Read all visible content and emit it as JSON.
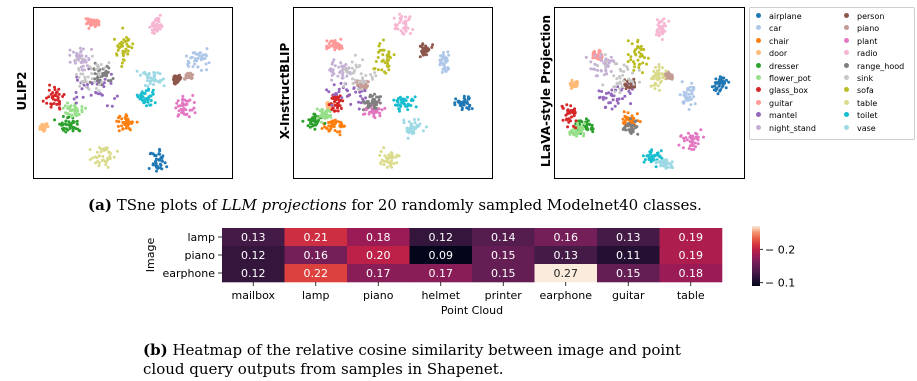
{
  "tsne": {
    "panels": [
      {
        "label": "ULIP2"
      },
      {
        "label": "X-InstructBLIP"
      },
      {
        "label": "LLaVA-style Projection"
      }
    ],
    "legend": [
      {
        "name": "airplane",
        "color": "#1f77b4"
      },
      {
        "name": "car",
        "color": "#aec7e8"
      },
      {
        "name": "chair",
        "color": "#ff7f0e"
      },
      {
        "name": "door",
        "color": "#ffbb78"
      },
      {
        "name": "dresser",
        "color": "#2ca02c"
      },
      {
        "name": "flower_pot",
        "color": "#98df8a"
      },
      {
        "name": "glass_box",
        "color": "#d62728"
      },
      {
        "name": "guitar",
        "color": "#ff9896"
      },
      {
        "name": "mantel",
        "color": "#9467bd"
      },
      {
        "name": "night_stand",
        "color": "#c5b0d5"
      },
      {
        "name": "person",
        "color": "#8c564b"
      },
      {
        "name": "piano",
        "color": "#c49c94"
      },
      {
        "name": "plant",
        "color": "#e377c2"
      },
      {
        "name": "radio",
        "color": "#f7b6d2"
      },
      {
        "name": "range_hood",
        "color": "#7f7f7f"
      },
      {
        "name": "sink",
        "color": "#c7c7c7"
      },
      {
        "name": "sofa",
        "color": "#bcbd22"
      },
      {
        "name": "table",
        "color": "#dbdb8d"
      },
      {
        "name": "toilet",
        "color": "#17becf"
      },
      {
        "name": "vase",
        "color": "#9edae5"
      }
    ]
  },
  "caption_a": {
    "tag": "(a)",
    "pre": " TSne plots of ",
    "em": "LLM projections",
    "post": " for 20 randomly sampled Modelnet40 classes."
  },
  "chart_data": {
    "type": "heatmap",
    "xlabel": "Point Cloud",
    "ylabel": "Image",
    "x_categories": [
      "mailbox",
      "lamp",
      "piano",
      "helmet",
      "printer",
      "earphone",
      "guitar",
      "table"
    ],
    "y_categories": [
      "lamp",
      "piano",
      "earphone"
    ],
    "values": [
      [
        0.13,
        0.21,
        0.18,
        0.12,
        0.14,
        0.16,
        0.13,
        0.19
      ],
      [
        0.12,
        0.16,
        0.2,
        0.09,
        0.15,
        0.13,
        0.11,
        0.19
      ],
      [
        0.12,
        0.22,
        0.17,
        0.17,
        0.15,
        0.27,
        0.15,
        0.18
      ]
    ],
    "colormap": "rocket",
    "colorbar": {
      "min": 0.09,
      "max": 0.27,
      "ticks": [
        "0.1",
        "0.2"
      ],
      "tick_values": [
        0.1,
        0.2
      ]
    }
  },
  "caption_b": {
    "tag": "(b)",
    "line1": " Heatmap of the relative cosine similarity between image and point",
    "line2": "cloud query outputs from samples in Shapenet."
  }
}
